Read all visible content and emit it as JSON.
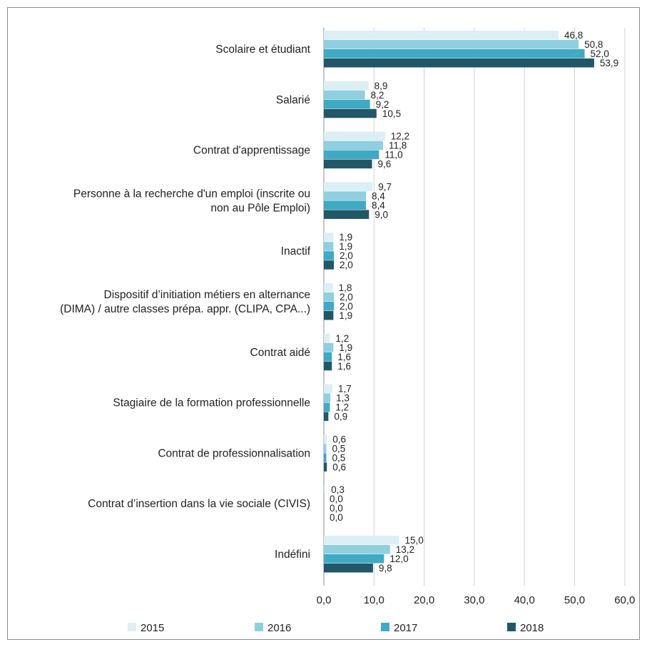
{
  "chart_data": {
    "type": "bar",
    "orientation": "horizontal",
    "categories": [
      [
        "Scolaire et étudiant"
      ],
      [
        "Salarié"
      ],
      [
        "Contrat d'apprentissage"
      ],
      [
        "Personne à la recherche d'un emploi (inscrite ou",
        "non au Pôle Emploi)"
      ],
      [
        "Inactif"
      ],
      [
        "Dispositif d’initiation métiers en alternance",
        "(DIMA) / autre classes prépa. appr. (CLIPA, CPA...)"
      ],
      [
        "Contrat aidé"
      ],
      [
        "Stagiaire de la formation professionnelle"
      ],
      [
        "Contrat de professionnalisation"
      ],
      [
        "Contrat d’insertion dans la vie sociale (CIVIS)"
      ],
      [
        "Indéfini"
      ]
    ],
    "series": [
      {
        "name": "2015",
        "color": "#dbeff5",
        "values": [
          46.8,
          8.9,
          12.2,
          9.7,
          1.9,
          1.8,
          1.2,
          1.7,
          0.6,
          0.3,
          15.0
        ],
        "labels": [
          "46,8",
          "8,9",
          "12,2",
          "9,7",
          "1,9",
          "1,8",
          "1,2",
          "1,7",
          "0,6",
          "0,3",
          "15,0"
        ]
      },
      {
        "name": "2016",
        "color": "#8fcfdf",
        "values": [
          50.8,
          8.2,
          11.8,
          8.4,
          1.9,
          2.0,
          1.9,
          1.3,
          0.5,
          0.0,
          13.2
        ],
        "labels": [
          "50,8",
          "8,2",
          "11,8",
          "8,4",
          "1,9",
          "2,0",
          "1,9",
          "1,3",
          "0,5",
          "0,0",
          "13,2"
        ]
      },
      {
        "name": "2017",
        "color": "#40a9c4",
        "values": [
          52.0,
          9.2,
          11.0,
          8.4,
          2.0,
          2.0,
          1.6,
          1.2,
          0.5,
          0.0,
          12.0
        ],
        "labels": [
          "52,0",
          "9,2",
          "11,0",
          "8,4",
          "2,0",
          "2,0",
          "1,6",
          "1,2",
          "0,5",
          "0,0",
          "12,0"
        ]
      },
      {
        "name": "2018",
        "color": "#215767",
        "values": [
          53.9,
          10.5,
          9.6,
          9.0,
          2.0,
          1.9,
          1.6,
          0.9,
          0.6,
          0.0,
          9.8
        ],
        "labels": [
          "53,9",
          "10,5",
          "9,6",
          "9,0",
          "2,0",
          "1,9",
          "1,6",
          "0,9",
          "0,6",
          "0,0",
          "9,8"
        ]
      }
    ],
    "xlim": [
      0,
      60
    ],
    "x_ticks": [
      0,
      10,
      20,
      30,
      40,
      50,
      60
    ],
    "x_tick_labels": [
      "0,0",
      "10,0",
      "20,0",
      "30,0",
      "40,0",
      "50,0",
      "60,0"
    ],
    "grid": "vertical",
    "legend_position": "bottom",
    "title": "",
    "xlabel": "",
    "ylabel": ""
  }
}
